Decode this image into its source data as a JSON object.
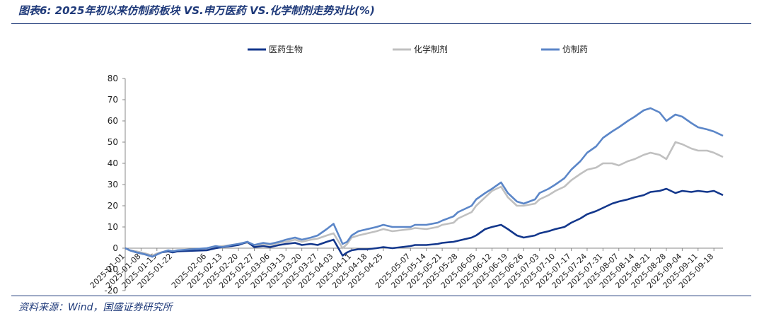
{
  "figure": {
    "title": "图表6:  2025年初以来仿制药板块 VS.申万医药 VS.化学制剂走势对比(%)",
    "source": "资料来源：Wind，国盛证券研究所"
  },
  "chart_data": {
    "type": "line",
    "title": "",
    "xlabel": "",
    "ylabel": "",
    "ylim": [
      -20,
      80
    ],
    "yticks": [
      -20,
      -10,
      0,
      10,
      20,
      30,
      40,
      50,
      60,
      70,
      80
    ],
    "xlim": [
      "2025-01-01",
      "2025-09-22"
    ],
    "xticks": [
      "2025-01-01",
      "2025-01-08",
      "2025-01-15",
      "2025-01-22",
      "2025-02-06",
      "2025-02-13",
      "2025-02-20",
      "2025-02-27",
      "2025-03-06",
      "2025-03-13",
      "2025-03-20",
      "2025-03-27",
      "2025-04-03",
      "2025-04-11",
      "2025-04-18",
      "2025-04-25",
      "2025-05-07",
      "2025-05-14",
      "2025-05-21",
      "2025-05-28",
      "2025-06-05",
      "2025-06-12",
      "2025-06-19",
      "2025-06-26",
      "2025-07-03",
      "2025-07-10",
      "2025-07-17",
      "2025-07-24",
      "2025-07-31",
      "2025-08-07",
      "2025-08-14",
      "2025-08-21",
      "2025-08-28",
      "2025-09-04",
      "2025-09-11",
      "2025-09-18"
    ],
    "legend_position": "top",
    "grid": false,
    "series": [
      {
        "name": "医药生物",
        "color": "#13378c",
        "points": [
          [
            "2025-01-01",
            0
          ],
          [
            "2025-01-03",
            -1
          ],
          [
            "2025-01-06",
            -2
          ],
          [
            "2025-01-08",
            -2.5
          ],
          [
            "2025-01-10",
            -3
          ],
          [
            "2025-01-13",
            -4
          ],
          [
            "2025-01-15",
            -3
          ],
          [
            "2025-01-17",
            -2
          ],
          [
            "2025-01-20",
            -1.5
          ],
          [
            "2025-01-22",
            -2
          ],
          [
            "2025-01-24",
            -1.5
          ],
          [
            "2025-02-06",
            -1
          ],
          [
            "2025-02-10",
            0
          ],
          [
            "2025-02-13",
            0.5
          ],
          [
            "2025-02-17",
            1
          ],
          [
            "2025-02-20",
            1.5
          ],
          [
            "2025-02-24",
            3
          ],
          [
            "2025-02-27",
            0.5
          ],
          [
            "2025-03-03",
            1
          ],
          [
            "2025-03-06",
            0.5
          ],
          [
            "2025-03-10",
            1.5
          ],
          [
            "2025-03-13",
            2
          ],
          [
            "2025-03-17",
            2.5
          ],
          [
            "2025-03-20",
            1.5
          ],
          [
            "2025-03-24",
            2
          ],
          [
            "2025-03-27",
            1.5
          ],
          [
            "2025-03-31",
            3
          ],
          [
            "2025-04-03",
            4
          ],
          [
            "2025-04-07",
            -3.5
          ],
          [
            "2025-04-09",
            -2
          ],
          [
            "2025-04-11",
            -1
          ],
          [
            "2025-04-14",
            -0.5
          ],
          [
            "2025-04-18",
            -0.5
          ],
          [
            "2025-04-22",
            0
          ],
          [
            "2025-04-25",
            0.5
          ],
          [
            "2025-04-29",
            0
          ],
          [
            "2025-05-07",
            1
          ],
          [
            "2025-05-09",
            1.5
          ],
          [
            "2025-05-14",
            1.5
          ],
          [
            "2025-05-19",
            2
          ],
          [
            "2025-05-21",
            2.5
          ],
          [
            "2025-05-26",
            3
          ],
          [
            "2025-05-28",
            3.5
          ],
          [
            "2025-06-03",
            5
          ],
          [
            "2025-06-05",
            6
          ],
          [
            "2025-06-09",
            9
          ],
          [
            "2025-06-12",
            10
          ],
          [
            "2025-06-16",
            11
          ],
          [
            "2025-06-19",
            9
          ],
          [
            "2025-06-23",
            6
          ],
          [
            "2025-06-26",
            5
          ],
          [
            "2025-07-01",
            6
          ],
          [
            "2025-07-03",
            7
          ],
          [
            "2025-07-07",
            8
          ],
          [
            "2025-07-10",
            9
          ],
          [
            "2025-07-14",
            10
          ],
          [
            "2025-07-17",
            12
          ],
          [
            "2025-07-21",
            14
          ],
          [
            "2025-07-24",
            16
          ],
          [
            "2025-07-28",
            17.5
          ],
          [
            "2025-07-31",
            19
          ],
          [
            "2025-08-04",
            21
          ],
          [
            "2025-08-07",
            22
          ],
          [
            "2025-08-11",
            23
          ],
          [
            "2025-08-14",
            24
          ],
          [
            "2025-08-18",
            25
          ],
          [
            "2025-08-21",
            26.5
          ],
          [
            "2025-08-25",
            27
          ],
          [
            "2025-08-28",
            28
          ],
          [
            "2025-09-01",
            26
          ],
          [
            "2025-09-04",
            27
          ],
          [
            "2025-09-08",
            26.5
          ],
          [
            "2025-09-11",
            27
          ],
          [
            "2025-09-15",
            26.5
          ],
          [
            "2025-09-18",
            27
          ],
          [
            "2025-09-22",
            25
          ]
        ]
      },
      {
        "name": "化学制剂",
        "color": "#c0c0c0",
        "points": [
          [
            "2025-01-01",
            0
          ],
          [
            "2025-01-03",
            -1
          ],
          [
            "2025-01-06",
            -1.5
          ],
          [
            "2025-01-08",
            -2
          ],
          [
            "2025-01-10",
            -2.5
          ],
          [
            "2025-01-13",
            -3.5
          ],
          [
            "2025-01-15",
            -2.5
          ],
          [
            "2025-01-17",
            -2
          ],
          [
            "2025-01-20",
            -1.5
          ],
          [
            "2025-01-22",
            -2
          ],
          [
            "2025-01-24",
            -1.5
          ],
          [
            "2025-02-06",
            -0.5
          ],
          [
            "2025-02-10",
            0.5
          ],
          [
            "2025-02-13",
            1
          ],
          [
            "2025-02-17",
            1.5
          ],
          [
            "2025-02-20",
            2
          ],
          [
            "2025-02-24",
            2.5
          ],
          [
            "2025-02-27",
            1
          ],
          [
            "2025-03-03",
            2
          ],
          [
            "2025-03-06",
            1.5
          ],
          [
            "2025-03-10",
            2.5
          ],
          [
            "2025-03-13",
            3
          ],
          [
            "2025-03-17",
            4
          ],
          [
            "2025-03-20",
            3
          ],
          [
            "2025-03-24",
            4
          ],
          [
            "2025-03-27",
            4.5
          ],
          [
            "2025-03-31",
            6
          ],
          [
            "2025-04-03",
            7
          ],
          [
            "2025-04-07",
            0
          ],
          [
            "2025-04-09",
            2
          ],
          [
            "2025-04-11",
            5
          ],
          [
            "2025-04-14",
            6
          ],
          [
            "2025-04-18",
            7
          ],
          [
            "2025-04-22",
            8
          ],
          [
            "2025-04-25",
            9
          ],
          [
            "2025-04-29",
            8
          ],
          [
            "2025-05-07",
            9
          ],
          [
            "2025-05-09",
            9.5
          ],
          [
            "2025-05-14",
            9
          ],
          [
            "2025-05-19",
            10
          ],
          [
            "2025-05-21",
            11
          ],
          [
            "2025-05-26",
            12
          ],
          [
            "2025-05-28",
            14
          ],
          [
            "2025-06-03",
            17
          ],
          [
            "2025-06-05",
            20
          ],
          [
            "2025-06-09",
            24
          ],
          [
            "2025-06-12",
            27
          ],
          [
            "2025-06-16",
            29
          ],
          [
            "2025-06-19",
            24
          ],
          [
            "2025-06-23",
            20
          ],
          [
            "2025-06-26",
            20
          ],
          [
            "2025-07-01",
            21
          ],
          [
            "2025-07-03",
            23
          ],
          [
            "2025-07-07",
            25
          ],
          [
            "2025-07-10",
            27
          ],
          [
            "2025-07-14",
            29
          ],
          [
            "2025-07-17",
            32
          ],
          [
            "2025-07-21",
            35
          ],
          [
            "2025-07-24",
            37
          ],
          [
            "2025-07-28",
            38
          ],
          [
            "2025-07-31",
            40
          ],
          [
            "2025-08-04",
            40
          ],
          [
            "2025-08-07",
            39
          ],
          [
            "2025-08-11",
            41
          ],
          [
            "2025-08-14",
            42
          ],
          [
            "2025-08-18",
            44
          ],
          [
            "2025-08-21",
            45
          ],
          [
            "2025-08-25",
            44
          ],
          [
            "2025-08-28",
            42
          ],
          [
            "2025-09-01",
            50
          ],
          [
            "2025-09-04",
            49
          ],
          [
            "2025-09-08",
            47
          ],
          [
            "2025-09-11",
            46
          ],
          [
            "2025-09-15",
            46
          ],
          [
            "2025-09-18",
            45
          ],
          [
            "2025-09-22",
            43
          ]
        ]
      },
      {
        "name": "仿制药",
        "color": "#5b86c8",
        "points": [
          [
            "2025-01-01",
            0
          ],
          [
            "2025-01-03",
            -1
          ],
          [
            "2025-01-06",
            -2
          ],
          [
            "2025-01-08",
            -2.5
          ],
          [
            "2025-01-10",
            -3
          ],
          [
            "2025-01-13",
            -4
          ],
          [
            "2025-01-15",
            -3
          ],
          [
            "2025-01-17",
            -2
          ],
          [
            "2025-01-20",
            -1
          ],
          [
            "2025-01-22",
            -1.5
          ],
          [
            "2025-01-24",
            -1
          ],
          [
            "2025-02-06",
            0
          ],
          [
            "2025-02-10",
            1
          ],
          [
            "2025-02-13",
            0.5
          ],
          [
            "2025-02-17",
            1.5
          ],
          [
            "2025-02-20",
            2
          ],
          [
            "2025-02-24",
            3
          ],
          [
            "2025-02-27",
            1.5
          ],
          [
            "2025-03-03",
            2.5
          ],
          [
            "2025-03-06",
            2
          ],
          [
            "2025-03-10",
            3
          ],
          [
            "2025-03-13",
            4
          ],
          [
            "2025-03-17",
            5
          ],
          [
            "2025-03-20",
            4
          ],
          [
            "2025-03-24",
            5
          ],
          [
            "2025-03-27",
            6
          ],
          [
            "2025-03-31",
            9
          ],
          [
            "2025-04-03",
            11.5
          ],
          [
            "2025-04-07",
            2
          ],
          [
            "2025-04-09",
            3
          ],
          [
            "2025-04-11",
            6
          ],
          [
            "2025-04-14",
            8
          ],
          [
            "2025-04-18",
            9
          ],
          [
            "2025-04-22",
            10
          ],
          [
            "2025-04-25",
            11
          ],
          [
            "2025-04-29",
            10
          ],
          [
            "2025-05-07",
            10
          ],
          [
            "2025-05-09",
            11
          ],
          [
            "2025-05-14",
            11
          ],
          [
            "2025-05-19",
            12
          ],
          [
            "2025-05-21",
            13
          ],
          [
            "2025-05-26",
            15
          ],
          [
            "2025-05-28",
            17
          ],
          [
            "2025-06-03",
            20
          ],
          [
            "2025-06-05",
            23
          ],
          [
            "2025-06-09",
            26
          ],
          [
            "2025-06-12",
            28
          ],
          [
            "2025-06-16",
            31
          ],
          [
            "2025-06-19",
            26
          ],
          [
            "2025-06-23",
            22
          ],
          [
            "2025-06-26",
            21
          ],
          [
            "2025-07-01",
            23
          ],
          [
            "2025-07-03",
            26
          ],
          [
            "2025-07-07",
            28
          ],
          [
            "2025-07-10",
            30
          ],
          [
            "2025-07-14",
            33
          ],
          [
            "2025-07-17",
            37
          ],
          [
            "2025-07-21",
            41
          ],
          [
            "2025-07-24",
            45
          ],
          [
            "2025-07-28",
            48
          ],
          [
            "2025-07-31",
            52
          ],
          [
            "2025-08-04",
            55
          ],
          [
            "2025-08-07",
            57
          ],
          [
            "2025-08-11",
            60
          ],
          [
            "2025-08-14",
            62
          ],
          [
            "2025-08-18",
            65
          ],
          [
            "2025-08-21",
            66
          ],
          [
            "2025-08-25",
            64
          ],
          [
            "2025-08-28",
            60
          ],
          [
            "2025-09-01",
            63
          ],
          [
            "2025-09-04",
            62
          ],
          [
            "2025-09-08",
            59
          ],
          [
            "2025-09-11",
            57
          ],
          [
            "2025-09-15",
            56
          ],
          [
            "2025-09-18",
            55
          ],
          [
            "2025-09-22",
            53
          ]
        ]
      }
    ]
  }
}
